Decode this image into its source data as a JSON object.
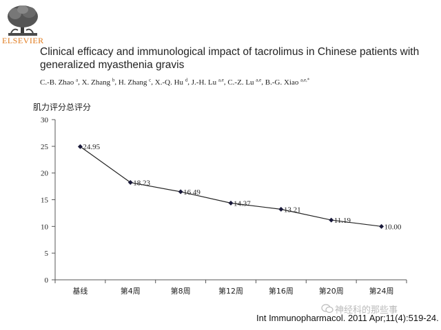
{
  "publisher": {
    "name": "ELSEVIER",
    "icon": "elsevier-tree-logo"
  },
  "paper": {
    "title_line1": "Clinical efficacy and immunological impact of tacrolimus in Chinese patients with",
    "title_line2": "generalized myasthenia gravis",
    "authors": [
      {
        "name": "C.-B. Zhao",
        "sup": "a"
      },
      {
        "name": "X. Zhang",
        "sup": "b"
      },
      {
        "name": "H. Zhang",
        "sup": "c"
      },
      {
        "name": "X.-Q. Hu",
        "sup": "d"
      },
      {
        "name": "J.-H. Lu",
        "sup": "a,e"
      },
      {
        "name": "C.-Z. Lu",
        "sup": "a,e"
      },
      {
        "name": "B.-G. Xiao",
        "sup": "a,e,*"
      }
    ]
  },
  "chart_data": {
    "type": "line",
    "ylabel": "肌力评分总评分",
    "xlabel": "",
    "categories": [
      "基线",
      "第4周",
      "第8周",
      "第12周",
      "第16周",
      "第20周",
      "第24周"
    ],
    "series": [
      {
        "values": [
          24.95,
          18.23,
          16.49,
          14.37,
          13.21,
          11.19,
          10.0
        ],
        "labels": [
          "24.95",
          "18.23",
          "16.49",
          "14.37",
          "13.21",
          "11.19",
          "10.00"
        ]
      }
    ],
    "ylim": [
      0,
      30
    ],
    "yticks": [
      0,
      5,
      10,
      15,
      20,
      25,
      30
    ],
    "grid": false,
    "line_color": "#222222"
  },
  "citation": "Int Immunopharmacol. 2011 Apr;11(4):519-24.",
  "watermark": {
    "text": "神经科的那些事",
    "icon": "wechat-icon"
  }
}
